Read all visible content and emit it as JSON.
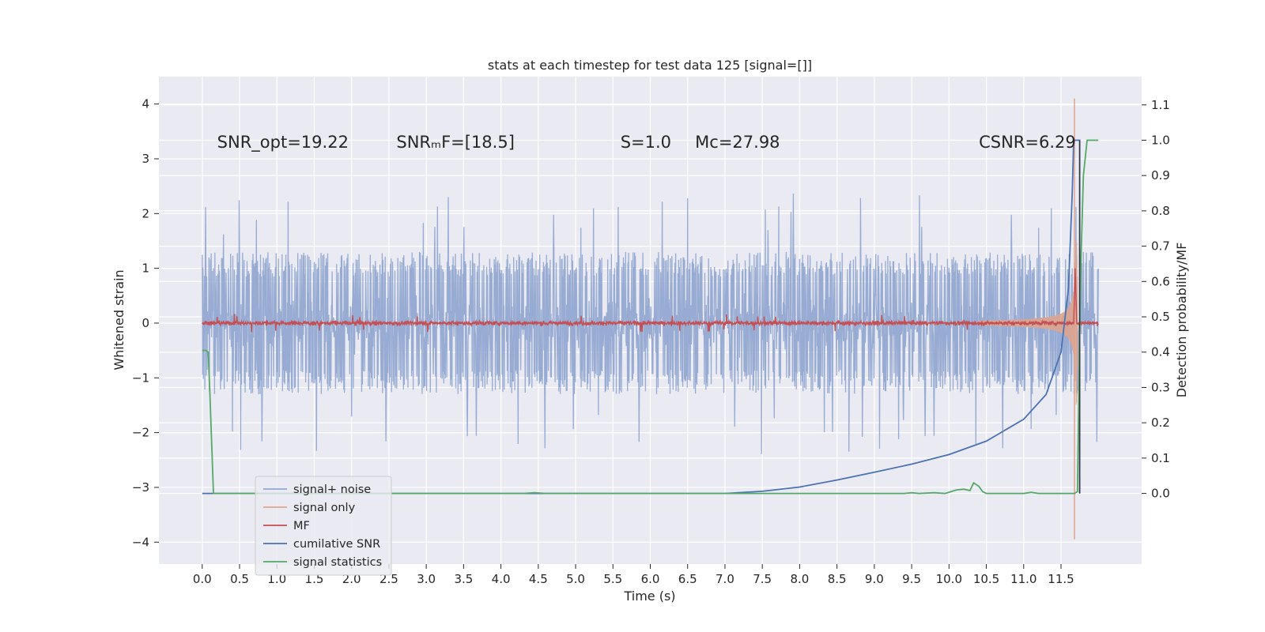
{
  "chart_data": {
    "type": "line",
    "title": "stats at each timestep for test data 125 [signal=[]]",
    "xlabel": "Time (s)",
    "ylabel_left": "Whitened strain",
    "ylabel_right": "Detection probability/MF",
    "xlim": [
      -0.58,
      12.58
    ],
    "ylim_left": [
      -4.4,
      4.5
    ],
    "ylim_right": [
      -0.2,
      1.18
    ],
    "xticks": [
      0.0,
      0.5,
      1.0,
      1.5,
      2.0,
      2.5,
      3.0,
      3.5,
      4.0,
      4.5,
      5.0,
      5.5,
      6.0,
      6.5,
      7.0,
      7.5,
      8.0,
      8.5,
      9.0,
      9.5,
      10.0,
      10.5,
      11.0,
      11.5
    ],
    "xtick_labels": [
      "0.0",
      "0.5",
      "1.0",
      "1.5",
      "2.0",
      "2.5",
      "3.0",
      "3.5",
      "4.0",
      "4.5",
      "5.0",
      "5.5",
      "6.0",
      "6.5",
      "7.0",
      "7.5",
      "8.0",
      "8.5",
      "9.0",
      "9.5",
      "10.0",
      "10.5",
      "11.0",
      "11.5"
    ],
    "yticks_left": [
      4,
      3,
      2,
      1,
      0,
      -1,
      -2,
      -3,
      -4
    ],
    "ytick_labels_left": [
      "4",
      "3",
      "2",
      "1",
      "0",
      "−1",
      "−2",
      "−3",
      "−4"
    ],
    "yticks_right": [
      1.1,
      1.0,
      0.9,
      0.8,
      0.7,
      0.6,
      0.5,
      0.4,
      0.3,
      0.2,
      0.1,
      0.0
    ],
    "ytick_labels_right": [
      "1.1",
      "1.0",
      "0.9",
      "0.8",
      "0.7",
      "0.6",
      "0.5",
      "0.4",
      "0.3",
      "0.2",
      "0.1",
      "0.0"
    ],
    "grid": true,
    "legend_position": "lower-left",
    "annotations": [
      {
        "text": "SNR_opt=19.22",
        "x": 0.2,
        "y": 3.3
      },
      {
        "text": "SNRₘF=[18.5]",
        "x": 2.6,
        "y": 3.3
      },
      {
        "text": "S=1.0",
        "x": 5.6,
        "y": 3.3
      },
      {
        "text": "Mᴄ=27.98",
        "x": 6.6,
        "y": 3.3
      },
      {
        "text": "CSNR=6.29",
        "x": 10.4,
        "y": 3.3
      }
    ],
    "series": [
      {
        "name": "signal+ noise",
        "axis": "left",
        "color": "#92a8d1",
        "t_range": [
          0.0,
          12.0
        ],
        "envelope_typical": [
          -1.2,
          1.3
        ],
        "envelope_extreme": [
          -2.5,
          2.45
        ]
      },
      {
        "name": "signal only",
        "axis": "left",
        "color": "#dea48f",
        "t_range": [
          0.0,
          11.72
        ],
        "chirp_onset": 10.4,
        "peak_time": 11.68,
        "peak_amplitude": [
          -3.95,
          4.1
        ]
      },
      {
        "name": "MF",
        "axis": "left",
        "color": "#c44e52",
        "t_range": [
          0.0,
          12.0
        ],
        "typical_range": [
          -0.1,
          0.1
        ],
        "peak_time": 11.69,
        "peak_value": 1.0
      },
      {
        "name": "cumilative SNR",
        "axis": "right",
        "color": "#4c72b0",
        "points": [
          [
            0.0,
            0.0
          ],
          [
            6.5,
            0.0
          ],
          [
            7.0,
            0.0
          ],
          [
            7.5,
            0.006
          ],
          [
            8.0,
            0.018
          ],
          [
            8.5,
            0.038
          ],
          [
            9.0,
            0.06
          ],
          [
            9.5,
            0.083
          ],
          [
            10.0,
            0.11
          ],
          [
            10.5,
            0.148
          ],
          [
            11.0,
            0.21
          ],
          [
            11.3,
            0.28
          ],
          [
            11.5,
            0.4
          ],
          [
            11.6,
            0.58
          ],
          [
            11.65,
            0.85
          ],
          [
            11.67,
            1.0
          ],
          [
            11.75,
            1.0
          ],
          [
            11.75,
            0.0
          ]
        ]
      },
      {
        "name": "signal statistics",
        "axis": "right",
        "color": "#55a868",
        "points": [
          [
            0.0,
            0.405
          ],
          [
            0.05,
            0.405
          ],
          [
            0.08,
            0.4
          ],
          [
            0.1,
            0.3
          ],
          [
            0.15,
            0.0
          ],
          [
            4.3,
            0.0
          ],
          [
            4.45,
            0.002
          ],
          [
            4.6,
            0.0
          ],
          [
            9.4,
            0.0
          ],
          [
            9.5,
            0.002
          ],
          [
            9.6,
            0.0
          ],
          [
            9.8,
            0.002
          ],
          [
            9.95,
            0.0
          ],
          [
            10.1,
            0.01
          ],
          [
            10.2,
            0.012
          ],
          [
            10.28,
            0.008
          ],
          [
            10.33,
            0.03
          ],
          [
            10.4,
            0.02
          ],
          [
            10.45,
            0.005
          ],
          [
            10.5,
            0.0
          ],
          [
            11.0,
            0.0
          ],
          [
            11.1,
            0.003
          ],
          [
            11.2,
            0.0
          ],
          [
            11.68,
            0.0
          ],
          [
            11.72,
            0.005
          ],
          [
            11.76,
            0.6
          ],
          [
            11.8,
            0.9
          ],
          [
            11.85,
            1.0
          ],
          [
            12.0,
            1.0
          ]
        ]
      }
    ]
  }
}
